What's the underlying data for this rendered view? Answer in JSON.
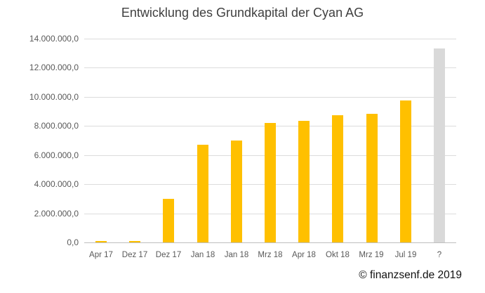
{
  "title": "Entwicklung des Grundkapital der Cyan AG",
  "footer": {
    "text": "© finanzsenf.de 2019"
  },
  "colors": {
    "bar_default": "#FFC000",
    "bar_unknown": "#D9D9D9",
    "gridline": "#DCDCDC",
    "axis_line": "#BFBFBF",
    "title_text": "#404040",
    "axis_text": "#595959",
    "footer_text": "#111111"
  },
  "chart_data": {
    "type": "bar",
    "title": "Entwicklung des Grundkapital der Cyan AG",
    "categories": [
      "Apr 17",
      "Dez 17",
      "Dez 17",
      "Jan 18",
      "Jan 18",
      "Mrz 18",
      "Apr 18",
      "Okt 18",
      "Mrz 19",
      "Jul 19",
      "?"
    ],
    "values": [
      50000,
      50000,
      3000000,
      6700000,
      7000000,
      8200000,
      8350000,
      8750000,
      8850000,
      9750000,
      13300000
    ],
    "bar_colors": [
      "#FFC000",
      "#FFC000",
      "#FFC000",
      "#FFC000",
      "#FFC000",
      "#FFC000",
      "#FFC000",
      "#FFC000",
      "#FFC000",
      "#FFC000",
      "#D9D9D9"
    ],
    "xlabel": "",
    "ylabel": "",
    "ylim": [
      0,
      14000000
    ],
    "ytick_step": 2000000,
    "yticks": [
      0,
      2000000,
      4000000,
      6000000,
      8000000,
      10000000,
      12000000,
      14000000
    ],
    "ytick_labels": [
      "0,0",
      "2.000.000,0",
      "4.000.000,0",
      "6.000.000,0",
      "8.000.000,0",
      "10.000.000,0",
      "12.000.000,0",
      "14.000.000,0"
    ],
    "grid": true,
    "legend": "none"
  }
}
